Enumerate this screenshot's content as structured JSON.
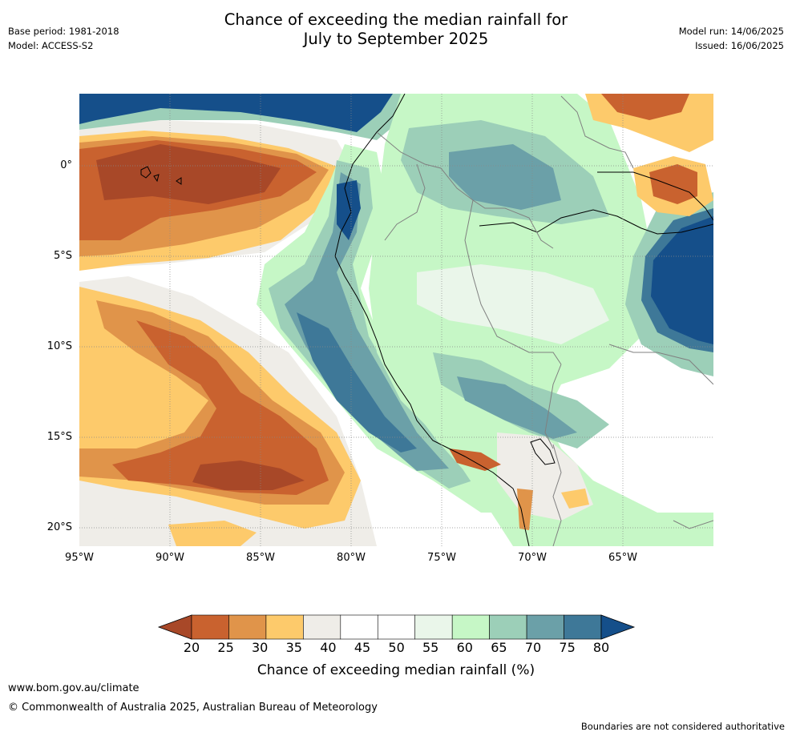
{
  "header": {
    "title_line1": "Chance of exceeding the median rainfall for",
    "title_line2": "July to September 2025",
    "base_period": "Base period: 1981-2018",
    "model": "Model: ACCESS-S2",
    "model_run": "Model run: 14/06/2025",
    "issued": "Issued: 16/06/2025"
  },
  "map": {
    "lon_range": [
      -95,
      -60
    ],
    "lat_range": [
      -21,
      4
    ],
    "lat_ticks": [
      "0°",
      "5°S",
      "10°S",
      "15°S",
      "20°S"
    ],
    "lon_ticks": [
      "95°W",
      "90°W",
      "85°W",
      "80°W",
      "75°W",
      "70°W",
      "65°W"
    ],
    "background_category": "50-55",
    "regions": [
      {
        "name": "northwest-pacific-wet",
        "color": "#154f8a"
      },
      {
        "name": "equatorial-pacific-dry-core",
        "color": "#a84828"
      },
      {
        "name": "equatorial-pacific-dry",
        "color": "#c9622f"
      },
      {
        "name": "equatorial-pacific-dry-edge",
        "color": "#e0944a"
      },
      {
        "name": "south-pacific-dry-band",
        "color": "#c9622f"
      },
      {
        "name": "south-pacific-dry-core",
        "color": "#a84828"
      },
      {
        "name": "peru-coast-wet",
        "color": "#6ba0a8"
      },
      {
        "name": "peru-coast-wet-core",
        "color": "#3e7898"
      },
      {
        "name": "amazon-wet",
        "color": "#c6f7c6"
      },
      {
        "name": "amazon-wet-mid",
        "color": "#9ccfb8"
      },
      {
        "name": "atlantic-wet",
        "color": "#154f8a"
      },
      {
        "name": "guiana-dry",
        "color": "#c9622f"
      }
    ]
  },
  "colorbar": {
    "ticks": [
      "20",
      "25",
      "30",
      "35",
      "40",
      "45",
      "50",
      "55",
      "60",
      "65",
      "70",
      "75",
      "80"
    ],
    "colors": [
      "#a84828",
      "#c9622f",
      "#e0944a",
      "#fdca6b",
      "#efede8",
      "#ffffff",
      "#ffffff",
      "#eaf6ea",
      "#c6f7c6",
      "#9ccfb8",
      "#6ba0a8",
      "#3e7898",
      "#154f8a"
    ],
    "label": "Chance of exceeding median rainfall (%)"
  },
  "footer": {
    "website": "www.bom.gov.au/climate",
    "copyright": "© Commonwealth of Australia 2025, Australian Bureau of Meteorology",
    "disclaimer": "Boundaries are not considered authoritative"
  }
}
